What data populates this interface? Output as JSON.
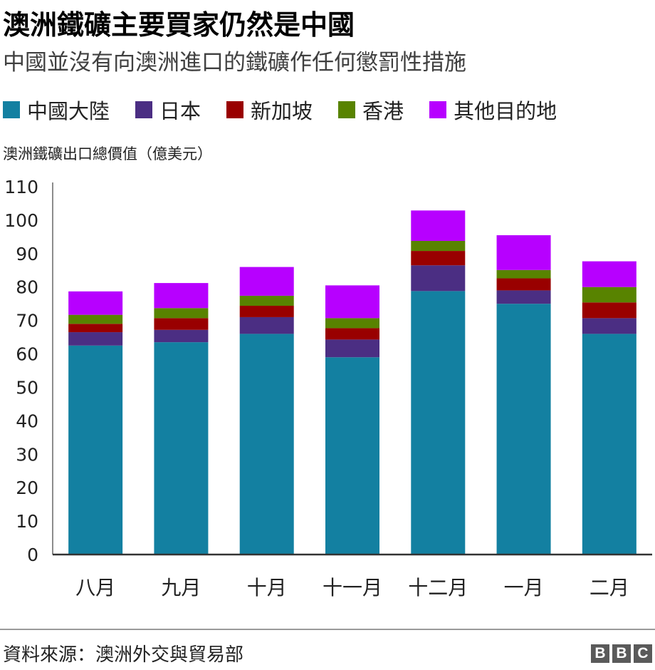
{
  "header": {
    "title": "澳洲鐵礦主要買家仍然是中國",
    "subtitle": "中國並沒有向澳洲進口的鐵礦作任何懲罰性措施"
  },
  "footer": {
    "source": "資料來源：澳洲外交與貿易部",
    "logo_letters": [
      "B",
      "B",
      "C"
    ]
  },
  "chart_data": {
    "type": "bar",
    "stacked": true,
    "ylabel": "澳洲鐵礦出口總價值（億美元）",
    "xlabel": "",
    "ylim": [
      0,
      110
    ],
    "yticks": [
      0,
      10,
      20,
      30,
      40,
      50,
      60,
      70,
      80,
      90,
      100,
      110
    ],
    "grid": false,
    "legend_position": "top",
    "categories": [
      "八月",
      "九月",
      "十月",
      "十一月",
      "十二月",
      "一月",
      "二月"
    ],
    "series": [
      {
        "name": "中國大陸",
        "color": "#1380A1",
        "values": [
          62.5,
          63.5,
          66,
          59,
          78.8,
          75,
          66
        ]
      },
      {
        "name": "日本",
        "color": "#4B2E83",
        "values": [
          4,
          3.7,
          5,
          5.3,
          7.7,
          4,
          4.7
        ]
      },
      {
        "name": "新加坡",
        "color": "#990000",
        "values": [
          2.5,
          3.5,
          3.4,
          3.4,
          4.3,
          3.6,
          4.7
        ]
      },
      {
        "name": "香港",
        "color": "#588300",
        "values": [
          2.7,
          3,
          3,
          3,
          3,
          2.5,
          4.6
        ]
      },
      {
        "name": "其他目的地",
        "color": "#B700FF",
        "values": [
          7,
          7.5,
          8.6,
          9.8,
          9.1,
          10.4,
          7.7
        ]
      }
    ]
  }
}
